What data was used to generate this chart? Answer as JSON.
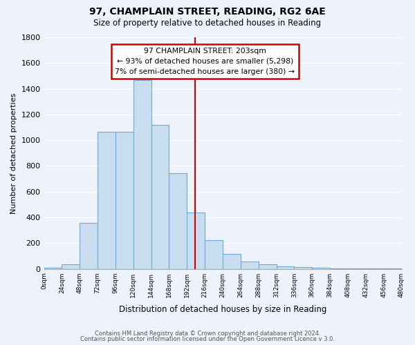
{
  "title": "97, CHAMPLAIN STREET, READING, RG2 6AE",
  "subtitle": "Size of property relative to detached houses in Reading",
  "xlabel": "Distribution of detached houses by size in Reading",
  "ylabel": "Number of detached properties",
  "bar_heights": [
    10,
    35,
    360,
    1065,
    1065,
    1470,
    1120,
    745,
    440,
    225,
    115,
    55,
    35,
    20,
    15,
    10,
    5,
    5,
    3,
    5
  ],
  "bar_color": "#c8ddf0",
  "bar_edgecolor": "#6aaad4",
  "vline_x": 203,
  "vline_color": "#cc0000",
  "box_text_line1": "97 CHAMPLAIN STREET: 203sqm",
  "box_text_line2": "← 93% of detached houses are smaller (5,298)",
  "box_text_line3": "7% of semi-detached houses are larger (380) →",
  "box_color": "#cc0000",
  "ylim": [
    0,
    1800
  ],
  "yticks": [
    0,
    200,
    400,
    600,
    800,
    1000,
    1200,
    1400,
    1600,
    1800
  ],
  "xtick_labels": [
    "0sqm",
    "24sqm",
    "48sqm",
    "72sqm",
    "96sqm",
    "120sqm",
    "144sqm",
    "168sqm",
    "192sqm",
    "216sqm",
    "240sqm",
    "264sqm",
    "288sqm",
    "312sqm",
    "336sqm",
    "360sqm",
    "384sqm",
    "408sqm",
    "432sqm",
    "456sqm",
    "480sqm"
  ],
  "footnote1": "Contains HM Land Registry data © Crown copyright and database right 2024.",
  "footnote2": "Contains public sector information licensed under the Open Government Licence v 3.0.",
  "bg_color": "#eef2fa",
  "grid_color": "white"
}
